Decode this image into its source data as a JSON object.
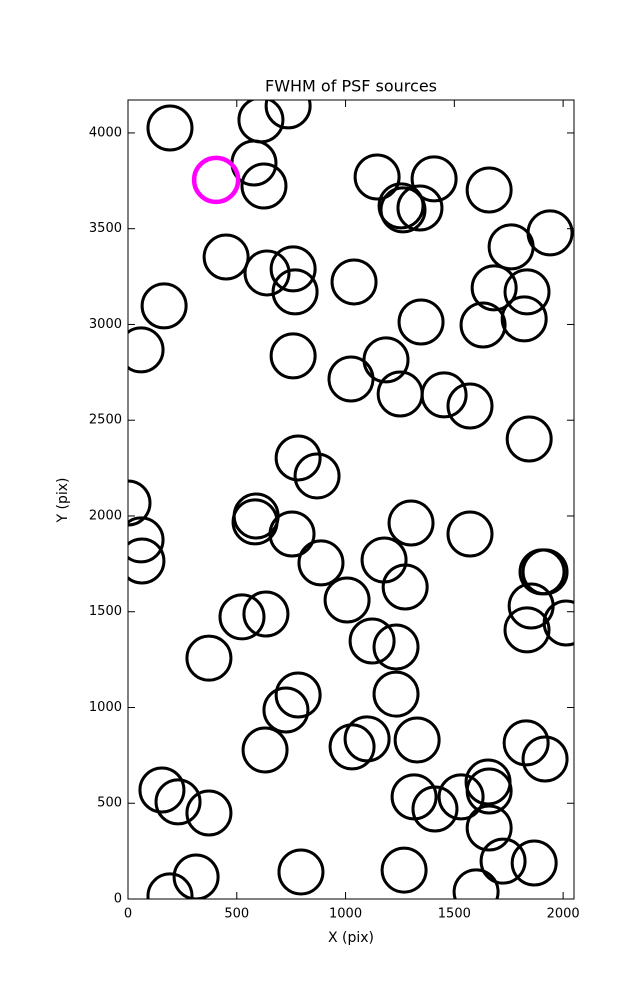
{
  "chart_data": {
    "type": "scatter",
    "title": "FWHM of PSF sources",
    "x_label": "X (pix)",
    "y_label": "Y (pix)",
    "xlim": [
      0,
      2050
    ],
    "ylim": [
      0,
      4172
    ],
    "xticks": [
      0,
      500,
      1000,
      1500,
      2000
    ],
    "yticks": [
      0,
      500,
      1000,
      1500,
      2000,
      2500,
      3000,
      3500,
      4000
    ],
    "series": [
      {
        "color": "#000000",
        "x": [
          193,
          611,
          736,
          579,
          625,
          1145,
          1407,
          1660,
          1255,
          1264,
          1342,
          1761,
          1940,
          451,
          639,
          759,
          768,
          166,
          1039,
          1683,
          1834,
          1821,
          1347,
          1632,
          60,
          759,
          1025,
          1186,
          1251,
          1453,
          1572,
          1844,
          782,
          869,
          0,
          60,
          64,
          589,
          584,
          754,
          1301,
          1572,
          887,
          1177,
          1274,
          1903,
          1917,
          1853,
          1834,
          2014,
          524,
          634,
          1007,
          1122,
          1232,
          372,
          782,
          726,
          1232,
          1099,
          1030,
          1329,
          630,
          1830,
          1917,
          156,
          230,
          372,
          1315,
          1411,
          1531,
          1655,
          1660,
          1660,
          1724,
          1867,
          313,
          193,
          795,
          1269,
          1600
        ],
        "values": [
          4026,
          4068,
          4141,
          3843,
          3723,
          3770,
          3760,
          3702,
          3619,
          3598,
          3608,
          3405,
          3478,
          3352,
          3269,
          3290,
          3170,
          3097,
          3222,
          3191,
          3170,
          3029,
          3013,
          2997,
          2867,
          2836,
          2715,
          2815,
          2637,
          2632,
          2574,
          2402,
          2303,
          2209,
          2068,
          1875,
          1765,
          2000,
          1969,
          1906,
          1963,
          1906,
          1755,
          1770,
          1629,
          1708,
          1708,
          1530,
          1405,
          1441,
          1473,
          1488,
          1561,
          1347,
          1316,
          1258,
          1065,
          987,
          1070,
          836,
          794,
          830,
          778,
          815,
          731,
          569,
          507,
          449,
          533,
          470,
          533,
          611,
          564,
          371,
          198,
          188,
          115,
          16,
          141,
          151,
          37
        ]
      },
      {
        "color": "#ff00ff",
        "x": [
          405
        ],
        "values": [
          3755
        ]
      }
    ]
  }
}
